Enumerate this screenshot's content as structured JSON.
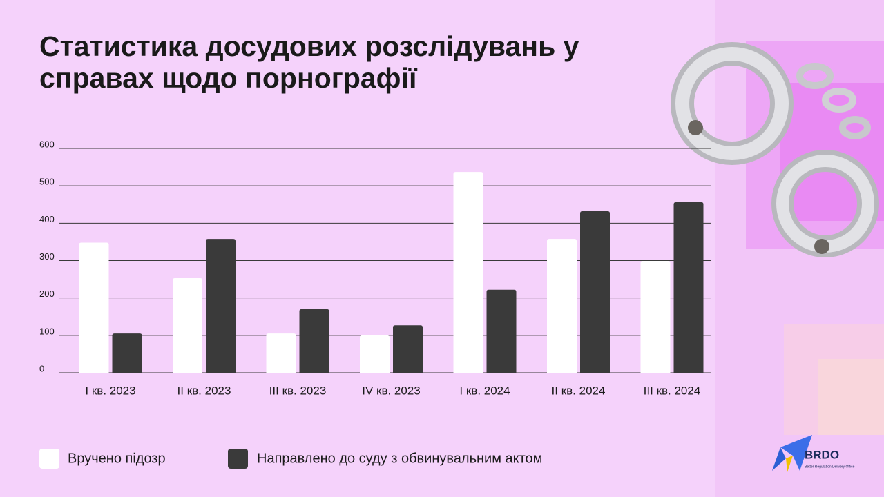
{
  "chart_data": {
    "type": "bar",
    "title": "Статистика досудових розслідувань у справах щодо порнографії",
    "categories": [
      "I кв. 2023",
      "II кв. 2023",
      "III кв. 2023",
      "IV кв. 2023",
      "I кв. 2024",
      "II кв. 2024",
      "III кв. 2024"
    ],
    "series": [
      {
        "name": "Вручено підозр",
        "color": "#ffffff",
        "values": [
          348,
          253,
          105,
          100,
          537,
          358,
          299
        ]
      },
      {
        "name": "Направлено до суду з обвинувальним актом",
        "color": "#3a3a3a",
        "values": [
          105,
          358,
          170,
          127,
          222,
          432,
          456
        ]
      }
    ],
    "ylim": [
      0,
      600
    ],
    "yticks": [
      0,
      100,
      200,
      300,
      400,
      500,
      600
    ],
    "grid": true
  },
  "brand": {
    "name": "BRDO",
    "tagline": "Better Regulation Delivery Office"
  }
}
